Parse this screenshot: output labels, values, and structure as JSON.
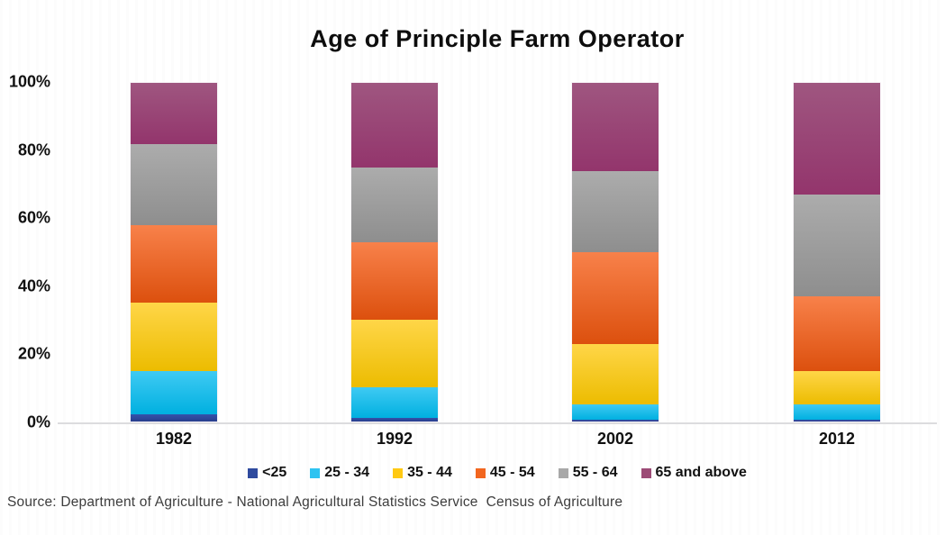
{
  "title": "Age of Principle Farm Operator",
  "source": "Source: Department of Agriculture - National Agricultural Statistics Service  Census of Agriculture",
  "y_axis": [
    "100%",
    "80%",
    "60%",
    "40%",
    "20%",
    "0%"
  ],
  "colors": {
    "background": "#ffffff",
    "axis_line": "#dcdcde",
    "text": "#111111"
  },
  "chart_data": {
    "type": "bar",
    "stacked": true,
    "percent_stacked": true,
    "title": "Age of Principle Farm Operator",
    "xlabel": "",
    "ylabel": "",
    "ylim": [
      0,
      100
    ],
    "grid": false,
    "legend_position": "bottom",
    "categories": [
      "1982",
      "1992",
      "2002",
      "2012"
    ],
    "series": [
      {
        "name": "<25",
        "color": "#2E4A9E",
        "gradient": [
          "#3552AB",
          "#283E8C"
        ],
        "values": [
          2,
          1,
          0.5,
          0.5
        ]
      },
      {
        "name": "25 - 34",
        "color": "#2EC3F1",
        "gradient": [
          "#3FCAF3",
          "#00B0E0"
        ],
        "values": [
          13,
          9,
          4.5,
          4.5
        ]
      },
      {
        "name": "35 - 44",
        "color": "#FFC913",
        "gradient": [
          "#FFD648",
          "#ECBC00"
        ],
        "values": [
          20,
          20,
          18,
          10
        ]
      },
      {
        "name": "45 - 54",
        "color": "#F2661F",
        "gradient": [
          "#F8814A",
          "#DC500E"
        ],
        "values": [
          23,
          23,
          27,
          22
        ]
      },
      {
        "name": "55 - 64",
        "color": "#A8A8A8",
        "gradient": [
          "#ACACAC",
          "#8E8E8E"
        ],
        "values": [
          24,
          22,
          24,
          30
        ]
      },
      {
        "name": "65 and above",
        "color": "#9C4B76",
        "gradient": [
          "#9F5680",
          "#93356C"
        ],
        "values": [
          18,
          25,
          26,
          33
        ]
      }
    ]
  }
}
